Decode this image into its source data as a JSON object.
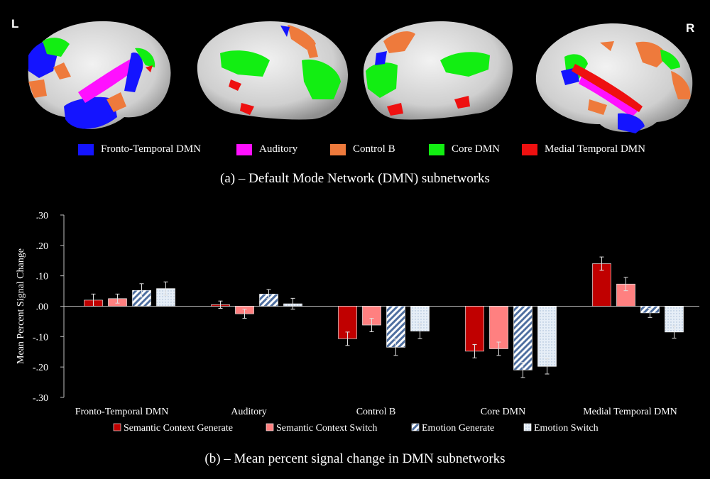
{
  "hemisphere_labels": {
    "left": "L",
    "right": "R"
  },
  "network_legend": [
    {
      "label": "Fronto-Temporal DMN",
      "color": "#1414ff"
    },
    {
      "label": "Auditory",
      "color": "#ff10ff"
    },
    {
      "label": "Control B",
      "color": "#ee7a3c"
    },
    {
      "label": "Core DMN",
      "color": "#12ee12"
    },
    {
      "label": "Medial Temporal DMN",
      "color": "#ee1010"
    }
  ],
  "captions": {
    "a": "(a)  – Default Mode Network (DMN) subnetworks",
    "b": "(b)  – Mean percent signal change in DMN subnetworks"
  },
  "chart_data": {
    "type": "bar",
    "ylabel": "Mean Percent Signal Change",
    "ylim": [
      -0.3,
      0.3
    ],
    "yticks": [
      0.3,
      0.2,
      0.1,
      0.0,
      -0.1,
      -0.2,
      -0.3
    ],
    "ytick_labels": [
      ".30",
      ".20",
      ".10",
      ".00",
      "-.10",
      "-.20",
      "-.30"
    ],
    "categories": [
      "Fronto-Temporal DMN",
      "Auditory",
      "Control B",
      "Core DMN",
      "Medial Temporal DMN"
    ],
    "series": [
      {
        "name": "Semantic Context Generate",
        "color": "#c00000",
        "pattern": "solid",
        "values": [
          0.02,
          0.005,
          -0.107,
          -0.148,
          0.14
        ],
        "errors": [
          0.02,
          0.012,
          0.022,
          0.022,
          0.022
        ]
      },
      {
        "name": "Semantic Context Switch",
        "color": "#ff8080",
        "pattern": "solid",
        "values": [
          0.025,
          -0.025,
          -0.062,
          -0.14,
          0.073
        ],
        "errors": [
          0.015,
          0.015,
          0.022,
          0.022,
          0.022
        ]
      },
      {
        "name": "Emotion Generate",
        "color": "#bdd7ee",
        "pattern": "hatch",
        "values": [
          0.052,
          0.04,
          -0.135,
          -0.21,
          -0.022
        ],
        "errors": [
          0.022,
          0.015,
          0.027,
          0.025,
          0.015
        ]
      },
      {
        "name": "Emotion Switch",
        "color": "#dde8f3",
        "pattern": "dots",
        "values": [
          0.058,
          0.008,
          -0.082,
          -0.198,
          -0.085
        ],
        "errors": [
          0.022,
          0.018,
          0.025,
          0.025,
          0.02
        ]
      }
    ]
  }
}
